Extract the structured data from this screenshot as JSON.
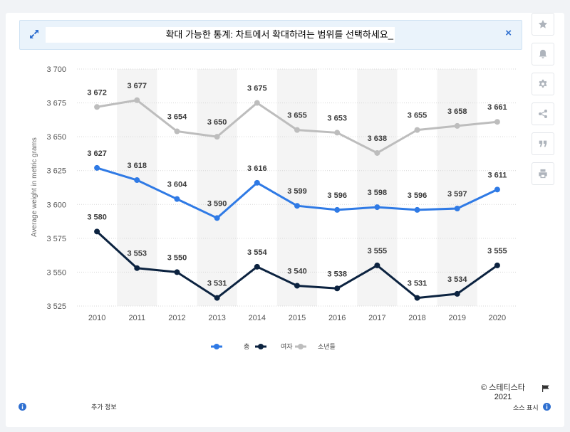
{
  "banner": {
    "text": "확대 가능한 통계: 차트에서 확대하려는 범위를 선택하세요_",
    "close_glyph": "×"
  },
  "toolbar": [
    "star-icon",
    "bell-icon",
    "gear-icon",
    "share-icon",
    "quote-icon",
    "print-icon"
  ],
  "footer": {
    "copyright_line1": "© 스테티스타",
    "copyright_line2": "2021",
    "more_info": "추가 정보",
    "source": "소스 표시"
  },
  "chart_data": {
    "type": "line",
    "title": "",
    "xlabel": "",
    "ylabel": "Average weight in metric grams",
    "x": [
      "2010",
      "2011",
      "2012",
      "2013",
      "2014",
      "2015",
      "2016",
      "2017",
      "2018",
      "2019",
      "2020"
    ],
    "ylim": [
      3525,
      3700
    ],
    "yticks": [
      3525,
      3550,
      3575,
      3600,
      3625,
      3650,
      3675,
      3700
    ],
    "ytick_labels": [
      "3 525",
      "3 550",
      "3 575",
      "3 600",
      "3 625",
      "3 650",
      "3 675",
      "3 700"
    ],
    "grid": true,
    "legend_position": "bottom-center",
    "series": [
      {
        "name": "총",
        "color": "#2f7ae5",
        "values": [
          3627,
          3618,
          3604,
          3590,
          3616,
          3599,
          3596,
          3598,
          3596,
          3597,
          3611
        ],
        "labels": [
          "3 627",
          "3 618",
          "3 604",
          "3 590",
          "3 616",
          "3 599",
          "3 596",
          "3 598",
          "3 596",
          "3 597",
          "3 611"
        ]
      },
      {
        "name": "여자",
        "color": "#0c2340",
        "values": [
          3580,
          3553,
          3550,
          3531,
          3554,
          3540,
          3538,
          3555,
          3531,
          3534,
          3555
        ],
        "labels": [
          "3 580",
          "3 553",
          "3 550",
          "3 531",
          "3 554",
          "3 540",
          "3 538",
          "3 555",
          "3 531",
          "3 534",
          "3 555"
        ]
      },
      {
        "name": "소년들",
        "color": "#bdbdbd",
        "values": [
          3672,
          3677,
          3654,
          3650,
          3675,
          3655,
          3653,
          3638,
          3655,
          3658,
          3661
        ],
        "labels": [
          "3 672",
          "3 677",
          "3 654",
          "3 650",
          "3 675",
          "3 655",
          "3 653",
          "3 638",
          "3 655",
          "3 658",
          "3 661"
        ]
      }
    ]
  }
}
